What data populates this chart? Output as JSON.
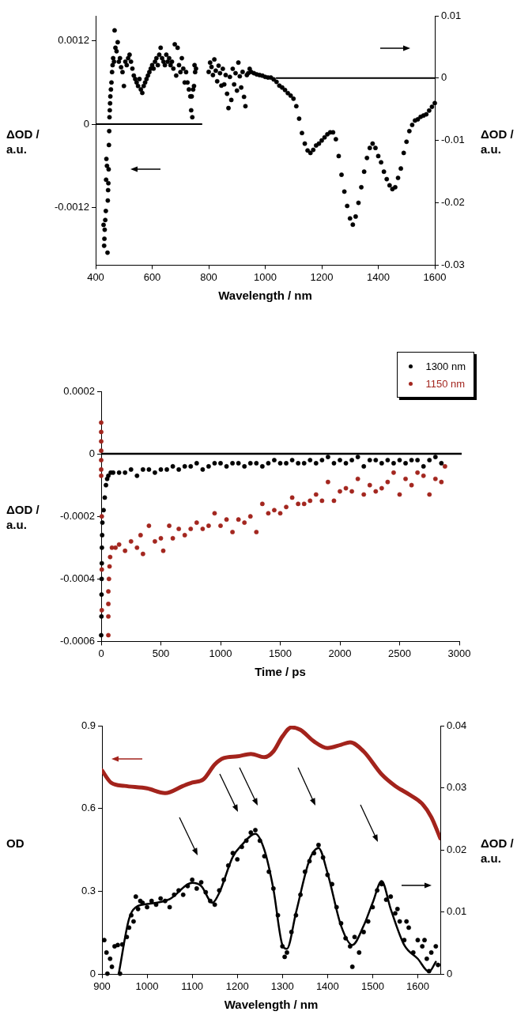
{
  "chart_data": [
    {
      "type": "scatter",
      "xlabel": "Wavelength / nm",
      "ylabel": "ΔOD / a.u.",
      "y2label": "ΔOD / a.u.",
      "marker": "circle",
      "xlim": [
        400,
        1600
      ],
      "xticks": [
        400,
        600,
        800,
        1000,
        1200,
        1400,
        1600
      ],
      "ylim": [
        -0.00203,
        0.00156
      ],
      "yticks": [
        -0.0012,
        0,
        0.0012
      ],
      "y2lim": [
        -0.03,
        0.01
      ],
      "y2ticks": [
        -0.03,
        -0.02,
        -0.01,
        0,
        0.01
      ],
      "series": [
        {
          "color": "#000000",
          "x": [
            428,
            430,
            431,
            432,
            434,
            436,
            437,
            438,
            440,
            442,
            443,
            444,
            445,
            446,
            447,
            448,
            449,
            450,
            451,
            452,
            454,
            456,
            458,
            460,
            462,
            465,
            467,
            470,
            474,
            478,
            482,
            486,
            490,
            495,
            500,
            505,
            510,
            515,
            520,
            525,
            530,
            535,
            540,
            545,
            550,
            555,
            560,
            565,
            570,
            575,
            580,
            585,
            590,
            595,
            600,
            605,
            610,
            615,
            620,
            625,
            630,
            635,
            640,
            645,
            650,
            655,
            660,
            665,
            670,
            675,
            680,
            685,
            690,
            695,
            700,
            705,
            710,
            715,
            720,
            725,
            730,
            735,
            738,
            740,
            742,
            745,
            748,
            750,
            752,
            755
          ],
          "values": [
            -0.00145,
            -0.00175,
            -0.00165,
            -0.00152,
            -0.00138,
            -0.00125,
            -0.0008,
            -0.0005,
            -0.0006,
            -0.00185,
            -0.0011,
            -0.00095,
            -0.00085,
            -0.00065,
            -0.0003,
            -0.0001,
            0.0001,
            0.0002,
            0.0003,
            0.0004,
            0.0005,
            0.0006,
            0.00075,
            0.00085,
            0.00095,
            0.0009,
            0.00135,
            0.0011,
            0.00105,
            0.00118,
            0.0009,
            0.00095,
            0.00082,
            0.00075,
            0.00055,
            0.0009,
            0.00085,
            0.00095,
            0.001,
            0.0009,
            0.0008,
            0.0007,
            0.00065,
            0.0006,
            0.00055,
            0.00065,
            0.0005,
            0.00045,
            0.00055,
            0.0006,
            0.00065,
            0.0007,
            0.00075,
            0.0008,
            0.00085,
            0.0008,
            0.0009,
            0.00095,
            0.00085,
            0.001,
            0.0011,
            0.00095,
            0.0009,
            0.00085,
            0.001,
            0.0009,
            0.00095,
            0.00085,
            0.0009,
            0.0008,
            0.00115,
            0.0007,
            0.0011,
            0.00085,
            0.00075,
            0.00095,
            0.0008,
            0.0006,
            0.00075,
            0.0006,
            0.0005,
            0.0004,
            0.0002,
            0.0004,
            0.0001,
            0.0005,
            0.00055,
            0.00085,
            0.00075,
            0.0008
          ]
        },
        {
          "color": "#000000",
          "axis": "y2",
          "x": [
            800,
            805,
            810,
            815,
            820,
            825,
            830,
            835,
            840,
            845,
            850,
            855,
            860,
            865,
            870,
            875,
            880,
            885,
            890,
            895,
            900,
            905,
            910,
            915,
            920,
            925,
            930,
            935,
            940,
            945,
            950,
            960,
            970,
            980,
            990,
            1000,
            1010,
            1020,
            1030,
            1040,
            1050,
            1060,
            1070,
            1080,
            1090,
            1100,
            1110,
            1120,
            1130,
            1140,
            1150,
            1160,
            1170,
            1180,
            1190,
            1200,
            1210,
            1220,
            1230,
            1240,
            1250,
            1260,
            1270,
            1280,
            1290,
            1300,
            1310,
            1320,
            1330,
            1340,
            1350,
            1360,
            1370,
            1380,
            1390,
            1400,
            1410,
            1420,
            1430,
            1440,
            1450,
            1460,
            1470,
            1480,
            1490,
            1500,
            1510,
            1520,
            1530,
            1540,
            1550,
            1560,
            1570,
            1580,
            1590,
            1600
          ],
          "values": [
            0.001,
            0.0025,
            0.0018,
            0.0005,
            0.003,
            0.0012,
            -0.0005,
            0.002,
            0.0008,
            -0.0012,
            0.0015,
            -0.001,
            0.0005,
            -0.0025,
            -0.0048,
            0.0002,
            -0.0035,
            0.0015,
            -0.001,
            0.0008,
            -0.002,
            0.0025,
            0.0003,
            -0.0015,
            0.001,
            -0.003,
            -0.0045,
            0.0005,
            0.0008,
            0.0015,
            0.001,
            0.0008,
            0.0006,
            0.0005,
            0.0004,
            0.0002,
            0.0001,
            0.0001,
            -0.0002,
            -0.0006,
            -0.0012,
            -0.0015,
            -0.0019,
            -0.0024,
            -0.0028,
            -0.0033,
            -0.0045,
            -0.0065,
            -0.0088,
            -0.0105,
            -0.0116,
            -0.012,
            -0.0115,
            -0.0108,
            -0.0105,
            -0.01,
            -0.0095,
            -0.009,
            -0.0087,
            -0.0087,
            -0.0098,
            -0.0125,
            -0.0155,
            -0.0182,
            -0.0205,
            -0.0225,
            -0.0235,
            -0.0222,
            -0.02,
            -0.0175,
            -0.015,
            -0.0128,
            -0.0112,
            -0.0105,
            -0.0112,
            -0.0125,
            -0.0135,
            -0.015,
            -0.0162,
            -0.0172,
            -0.0178,
            -0.0175,
            -0.016,
            -0.0145,
            -0.012,
            -0.0102,
            -0.0085,
            -0.0075,
            -0.0068,
            -0.0066,
            -0.0062,
            -0.006,
            -0.0058,
            -0.0052,
            -0.0046,
            -0.004
          ]
        },
        {
          "type": "line",
          "marker": "none",
          "color": "#000000",
          "x": [
            400,
            775
          ],
          "values": [
            0,
            0
          ]
        },
        {
          "type": "line",
          "marker": "none",
          "color": "#000000",
          "axis": "y2",
          "x": [
            1040,
            1600
          ],
          "values": [
            0,
            0
          ]
        }
      ]
    },
    {
      "type": "scatter",
      "xlabel": "Time / ps",
      "ylabel": "ΔOD / a.u.",
      "marker": "circle",
      "legend": "top right",
      "xlim": [
        0,
        3000
      ],
      "xticks": [
        0,
        500,
        1000,
        1500,
        2000,
        2500,
        3000
      ],
      "ylim": [
        -0.0006,
        0.0002
      ],
      "yticks": [
        -0.0006,
        -0.0004,
        -0.0002,
        0,
        0.0002
      ],
      "ref_lines": [
        {
          "axis": "y",
          "value": 0
        }
      ],
      "series": [
        {
          "name": "1300 nm",
          "color": "#000000",
          "x": [
            0,
            2,
            3,
            4,
            5,
            6,
            8,
            10,
            20,
            30,
            40,
            50,
            60,
            80,
            100,
            150,
            200,
            250,
            300,
            350,
            400,
            450,
            500,
            550,
            600,
            650,
            700,
            750,
            800,
            850,
            900,
            950,
            1000,
            1050,
            1100,
            1150,
            1200,
            1250,
            1300,
            1350,
            1400,
            1450,
            1500,
            1550,
            1600,
            1650,
            1700,
            1750,
            1800,
            1850,
            1900,
            1950,
            2000,
            2050,
            2100,
            2150,
            2200,
            2250,
            2300,
            2350,
            2400,
            2450,
            2500,
            2550,
            2600,
            2650,
            2700,
            2750,
            2800,
            2850
          ],
          "values": [
            -0.00058,
            -0.00052,
            -0.00045,
            -0.0004,
            -0.00035,
            -0.0003,
            -0.00026,
            -0.00022,
            -0.00018,
            -0.00014,
            -0.0001,
            -8e-05,
            -7e-05,
            -6e-05,
            -6e-05,
            -6e-05,
            -6e-05,
            -5e-05,
            -7e-05,
            -5e-05,
            -5e-05,
            -6e-05,
            -5e-05,
            -5e-05,
            -4e-05,
            -5e-05,
            -4e-05,
            -4e-05,
            -3e-05,
            -5e-05,
            -4e-05,
            -3e-05,
            -3e-05,
            -4e-05,
            -3e-05,
            -3e-05,
            -4e-05,
            -3e-05,
            -3e-05,
            -4e-05,
            -3e-05,
            -2e-05,
            -3e-05,
            -3e-05,
            -2e-05,
            -3e-05,
            -3e-05,
            -2e-05,
            -3e-05,
            -2e-05,
            -1e-05,
            -3e-05,
            -2e-05,
            -3e-05,
            -2e-05,
            -1e-05,
            -4e-05,
            -2e-05,
            -2e-05,
            -3e-05,
            -2e-05,
            -3e-05,
            -2e-05,
            -3e-05,
            -2e-05,
            -2e-05,
            -4e-05,
            -2e-05,
            -1e-05,
            -3e-05
          ]
        },
        {
          "name": "1150 nm",
          "color": "#a3261f",
          "x": [
            0,
            0,
            0,
            0,
            0,
            0,
            0,
            5,
            5,
            5,
            60,
            60,
            60,
            60,
            65,
            70,
            75,
            90,
            120,
            150,
            200,
            250,
            300,
            330,
            350,
            400,
            450,
            500,
            520,
            570,
            600,
            650,
            700,
            750,
            800,
            850,
            900,
            950,
            1000,
            1050,
            1100,
            1150,
            1200,
            1250,
            1300,
            1350,
            1400,
            1450,
            1500,
            1550,
            1600,
            1650,
            1700,
            1750,
            1800,
            1850,
            1900,
            1950,
            2000,
            2050,
            2100,
            2150,
            2200,
            2250,
            2300,
            2350,
            2400,
            2450,
            2500,
            2550,
            2600,
            2650,
            2700,
            2750,
            2800,
            2850,
            2880
          ],
          "values": [
            0.0001,
            7e-05,
            4e-05,
            1e-05,
            -2e-05,
            -5e-05,
            -7e-05,
            -0.0002,
            -0.00037,
            -0.0005,
            -0.00058,
            -0.00052,
            -0.00048,
            -0.00044,
            -0.0004,
            -0.00036,
            -0.00033,
            -0.0003,
            -0.0003,
            -0.00029,
            -0.00031,
            -0.00028,
            -0.0003,
            -0.00026,
            -0.00032,
            -0.00023,
            -0.00028,
            -0.00027,
            -0.00031,
            -0.00023,
            -0.00027,
            -0.00024,
            -0.00026,
            -0.00024,
            -0.00022,
            -0.00024,
            -0.00023,
            -0.00019,
            -0.00023,
            -0.00021,
            -0.00025,
            -0.00021,
            -0.00022,
            -0.0002,
            -0.00025,
            -0.00016,
            -0.00019,
            -0.00018,
            -0.00019,
            -0.00017,
            -0.00014,
            -0.00016,
            -0.00016,
            -0.00015,
            -0.00013,
            -0.00015,
            -9e-05,
            -0.00015,
            -0.00012,
            -0.00011,
            -0.00012,
            -8e-05,
            -0.00013,
            -0.0001,
            -0.00012,
            -0.00011,
            -9e-05,
            -6e-05,
            -0.00013,
            -8e-05,
            -0.0001,
            -6e-05,
            -7e-05,
            -0.00013,
            -8e-05,
            -9e-05,
            -4e-05
          ]
        }
      ]
    },
    {
      "type": "scatter",
      "xlabel": "Wavelength / nm",
      "ylabel": "OD",
      "y2label": "ΔOD / a.u.",
      "marker": "circle",
      "xlim": [
        900,
        1650
      ],
      "xticks": [
        900,
        1000,
        1100,
        1200,
        1300,
        1400,
        1500,
        1600
      ],
      "ylim": [
        0,
        0.9
      ],
      "yticks": [
        0,
        0.3,
        0.6,
        0.9
      ],
      "y2lim": [
        0,
        0.04
      ],
      "y2ticks": [
        0,
        0.01,
        0.02,
        0.03,
        0.04
      ],
      "series": [
        {
          "type": "line",
          "marker": "none",
          "color": "#a3231c",
          "x": [
            900,
            920,
            950,
            1000,
            1040,
            1080,
            1100,
            1125,
            1150,
            1170,
            1200,
            1230,
            1260,
            1280,
            1300,
            1320,
            1340,
            1370,
            1400,
            1430,
            1450,
            1480,
            1520,
            1550,
            1580,
            1610,
            1630,
            1650
          ],
          "values": [
            0.738,
            0.694,
            0.682,
            0.673,
            0.656,
            0.682,
            0.694,
            0.706,
            0.76,
            0.783,
            0.789,
            0.798,
            0.786,
            0.807,
            0.861,
            0.894,
            0.885,
            0.843,
            0.819,
            0.831,
            0.84,
            0.807,
            0.724,
            0.682,
            0.652,
            0.617,
            0.569,
            0.492
          ]
        },
        {
          "type": "line",
          "marker": "none",
          "color": "#000000",
          "axis": "y2",
          "x": [
            937,
            960,
            980,
            1000,
            1050,
            1100,
            1120,
            1145,
            1160,
            1190,
            1210,
            1240,
            1260,
            1280,
            1300,
            1310,
            1330,
            1360,
            1380,
            1400,
            1430,
            1455,
            1480,
            1500,
            1520,
            1540,
            1570,
            1600,
            1625,
            1640
          ],
          "values": [
            0,
            0.0089,
            0.011,
            0.0113,
            0.0121,
            0.0147,
            0.0142,
            0.0115,
            0.0131,
            0.0189,
            0.0208,
            0.0226,
            0.02,
            0.0137,
            0.0047,
            0.0041,
            0.0099,
            0.0184,
            0.0203,
            0.0163,
            0.0078,
            0.0047,
            0.0078,
            0.0115,
            0.015,
            0.0105,
            0.0047,
            0.0025,
            0.0004,
            0.002
          ]
        },
        {
          "color": "#000000",
          "axis": "y2",
          "x": [
            905,
            910,
            912,
            918,
            922,
            928,
            935,
            940,
            945,
            955,
            960,
            965,
            970,
            975,
            980,
            985,
            990,
            1000,
            1010,
            1020,
            1030,
            1040,
            1050,
            1060,
            1070,
            1080,
            1090,
            1100,
            1110,
            1120,
            1130,
            1140,
            1150,
            1160,
            1170,
            1180,
            1190,
            1200,
            1210,
            1220,
            1230,
            1240,
            1250,
            1260,
            1270,
            1280,
            1290,
            1300,
            1305,
            1310,
            1320,
            1330,
            1340,
            1350,
            1360,
            1370,
            1380,
            1390,
            1400,
            1410,
            1420,
            1430,
            1440,
            1450,
            1455,
            1460,
            1470,
            1480,
            1490,
            1500,
            1510,
            1520,
            1530,
            1540,
            1550,
            1555,
            1560,
            1570,
            1575,
            1580,
            1590,
            1600,
            1610,
            1615,
            1620,
            1625,
            1630,
            1640,
            1645
          ],
          "values": [
            0.0055,
            0.0035,
            0.0001,
            0.0025,
            0.0012,
            0.0045,
            0.0047,
            0.0001,
            0.0048,
            0.006,
            0.0075,
            0.0095,
            0.0085,
            0.0125,
            0.0105,
            0.0118,
            0.0115,
            0.0108,
            0.0118,
            0.0112,
            0.0122,
            0.0118,
            0.0108,
            0.0128,
            0.0135,
            0.0128,
            0.0142,
            0.0152,
            0.0138,
            0.0148,
            0.0132,
            0.0118,
            0.0112,
            0.0135,
            0.0152,
            0.0175,
            0.0195,
            0.0185,
            0.0205,
            0.0215,
            0.0228,
            0.0232,
            0.0215,
            0.019,
            0.0165,
            0.0138,
            0.0095,
            0.0045,
            0.0028,
            0.0035,
            0.0068,
            0.0095,
            0.0128,
            0.0165,
            0.0182,
            0.0195,
            0.0208,
            0.0188,
            0.016,
            0.0145,
            0.0108,
            0.0082,
            0.0058,
            0.0045,
            0.0012,
            0.006,
            0.0035,
            0.0068,
            0.0085,
            0.0108,
            0.0135,
            0.0145,
            0.012,
            0.0125,
            0.0098,
            0.0105,
            0.0085,
            0.0055,
            0.0085,
            0.0075,
            0.0035,
            0.0055,
            0.0045,
            0.0055,
            0.0025,
            0.0005,
            0.0035,
            0.0045,
            0.0015
          ]
        }
      ]
    }
  ]
}
